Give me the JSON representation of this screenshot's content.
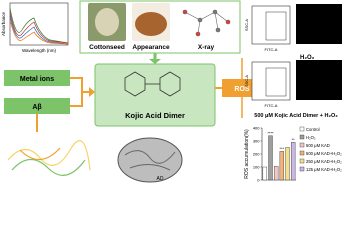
{
  "spectrum": {
    "x_label": "Wavelength (nm)",
    "y_label": "Absorbance"
  },
  "images": {
    "cottonseed": "Cottonseed",
    "appearance": "Appearance",
    "xray": "X-ray"
  },
  "boxes": {
    "metal_ions": "Metal ions",
    "abeta": "Aβ",
    "center": "Kojic Acid Dimer",
    "ros": "ROS"
  },
  "flow": {
    "x_label": "FITC-A",
    "y_label": "SSC-A",
    "top_caption": "H₂O₂",
    "bottom_caption": "500 μM Kojic Acid Dimer + H₂O₂"
  },
  "brain_label": "AD",
  "bar_chart": {
    "y_label": "ROS accumulation(%)",
    "ylim": [
      0,
      400
    ],
    "yticks": [
      0,
      100,
      200,
      300,
      400
    ],
    "categories": [
      "Control",
      "H₂O₂",
      "500 μM KAD",
      "500 μM KAD+H₂O₂",
      "250 μM KAD+H₂O₂",
      "125 μM KAD+H₂O₂"
    ],
    "values": [
      100,
      340,
      105,
      220,
      250,
      290
    ],
    "colors": [
      "#ffffff",
      "#9e9e9e",
      "#f4c6c6",
      "#f3b27a",
      "#f5df8a",
      "#c9b8e6"
    ],
    "annotations": [
      "****",
      "***",
      "**"
    ]
  }
}
